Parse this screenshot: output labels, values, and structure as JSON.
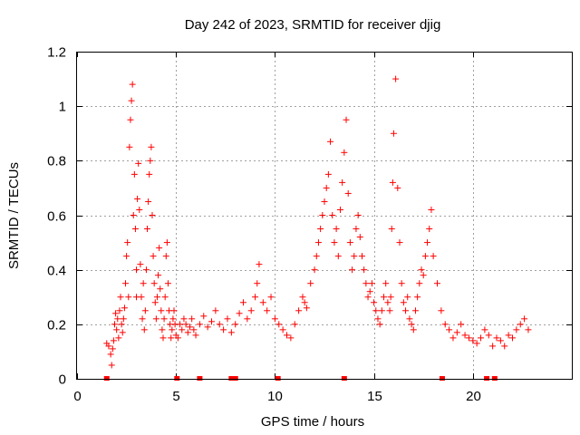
{
  "chart_data": {
    "type": "scatter",
    "title": "Day 242 of 2023, SRMTID for receiver djig",
    "xlabel": "GPS time / hours",
    "ylabel": "SRMTID / TECUs",
    "xlim": [
      0,
      25
    ],
    "ylim": [
      0,
      1.2
    ],
    "x_ticks": [
      0,
      5,
      10,
      15,
      20
    ],
    "x_tick_labels": [
      "0",
      "5",
      "10",
      "15",
      "20"
    ],
    "y_ticks": [
      0,
      0.2,
      0.4,
      0.6,
      0.8,
      1.0,
      1.2
    ],
    "y_tick_labels": [
      "0",
      "0.2",
      "0.4",
      "0.6",
      "0.8",
      "1",
      "1.2"
    ],
    "grid": true,
    "marker": "plus",
    "color": "#ff0000",
    "series": [
      {
        "name": "SRMTID",
        "x": [
          1.5,
          1.6,
          1.7,
          1.75,
          1.8,
          1.85,
          1.9,
          1.95,
          2.0,
          2.05,
          2.1,
          2.15,
          2.2,
          2.25,
          2.3,
          2.35,
          2.4,
          2.45,
          2.5,
          2.55,
          2.6,
          2.65,
          2.7,
          2.75,
          2.8,
          2.85,
          2.9,
          2.95,
          3.0,
          3.0,
          3.05,
          3.1,
          3.15,
          3.2,
          3.25,
          3.3,
          3.35,
          3.4,
          3.45,
          3.5,
          3.55,
          3.6,
          3.65,
          3.7,
          3.75,
          3.8,
          3.85,
          3.9,
          3.95,
          4.0,
          4.05,
          4.1,
          4.15,
          4.2,
          4.25,
          4.3,
          4.35,
          4.4,
          4.45,
          4.5,
          4.55,
          4.6,
          4.65,
          4.7,
          4.75,
          4.8,
          4.85,
          4.9,
          4.95,
          5.0,
          5.1,
          5.2,
          5.3,
          5.4,
          5.5,
          5.6,
          5.7,
          5.8,
          5.9,
          6.0,
          6.2,
          6.4,
          6.6,
          6.8,
          7.0,
          7.2,
          7.4,
          7.6,
          7.8,
          8.0,
          8.2,
          8.4,
          8.6,
          8.8,
          9.0,
          9.1,
          9.2,
          9.4,
          9.6,
          9.8,
          10.0,
          10.2,
          10.4,
          10.6,
          10.8,
          11.0,
          11.2,
          11.4,
          11.5,
          11.6,
          11.8,
          12.0,
          12.1,
          12.2,
          12.3,
          12.4,
          12.5,
          12.6,
          12.7,
          12.8,
          12.9,
          13.0,
          13.1,
          13.2,
          13.3,
          13.4,
          13.5,
          13.6,
          13.7,
          13.8,
          13.9,
          14.0,
          14.1,
          14.2,
          14.3,
          14.4,
          14.5,
          14.6,
          14.7,
          14.8,
          14.9,
          15.0,
          15.1,
          15.2,
          15.3,
          15.4,
          15.5,
          15.6,
          15.7,
          15.8,
          15.85,
          15.9,
          15.95,
          16.0,
          16.1,
          16.2,
          16.3,
          16.4,
          16.5,
          16.6,
          16.7,
          16.8,
          16.9,
          17.0,
          17.1,
          17.2,
          17.3,
          17.4,
          17.5,
          17.6,
          17.7,
          17.8,
          17.9,
          18.0,
          18.2,
          18.4,
          18.6,
          18.8,
          19.0,
          19.2,
          19.4,
          19.6,
          19.8,
          20.0,
          20.2,
          20.4,
          20.6,
          20.8,
          21.0,
          21.2,
          21.4,
          21.6,
          21.8,
          22.0,
          22.2,
          22.4,
          22.6,
          22.8
        ],
        "y": [
          0.13,
          0.12,
          0.09,
          0.05,
          0.11,
          0.14,
          0.2,
          0.24,
          0.18,
          0.22,
          0.15,
          0.25,
          0.3,
          0.2,
          0.17,
          0.22,
          0.26,
          0.35,
          0.45,
          0.5,
          0.3,
          0.85,
          0.95,
          1.02,
          1.08,
          0.6,
          0.75,
          0.55,
          0.4,
          0.3,
          0.66,
          0.79,
          0.62,
          0.42,
          0.3,
          0.22,
          0.35,
          0.18,
          0.25,
          0.4,
          0.55,
          0.65,
          0.75,
          0.8,
          0.85,
          0.6,
          0.45,
          0.35,
          0.28,
          0.22,
          0.3,
          0.38,
          0.48,
          0.33,
          0.25,
          0.18,
          0.15,
          0.22,
          0.3,
          0.45,
          0.5,
          0.35,
          0.25,
          0.2,
          0.15,
          0.18,
          0.22,
          0.25,
          0.2,
          0.16,
          0.15,
          0.2,
          0.18,
          0.22,
          0.2,
          0.17,
          0.19,
          0.22,
          0.18,
          0.16,
          0.2,
          0.23,
          0.19,
          0.21,
          0.25,
          0.2,
          0.18,
          0.22,
          0.17,
          0.2,
          0.24,
          0.28,
          0.22,
          0.25,
          0.3,
          0.35,
          0.42,
          0.28,
          0.25,
          0.3,
          0.22,
          0.2,
          0.18,
          0.16,
          0.15,
          0.2,
          0.25,
          0.3,
          0.28,
          0.26,
          0.35,
          0.4,
          0.45,
          0.5,
          0.55,
          0.6,
          0.65,
          0.7,
          0.75,
          0.87,
          0.6,
          0.5,
          0.55,
          0.45,
          0.62,
          0.72,
          0.83,
          0.95,
          0.68,
          0.5,
          0.4,
          0.45,
          0.55,
          0.6,
          0.52,
          0.45,
          0.4,
          0.35,
          0.3,
          0.32,
          0.35,
          0.28,
          0.25,
          0.22,
          0.2,
          0.25,
          0.3,
          0.35,
          0.28,
          0.25,
          0.3,
          0.55,
          0.72,
          0.9,
          1.1,
          0.7,
          0.5,
          0.35,
          0.28,
          0.25,
          0.3,
          0.22,
          0.2,
          0.18,
          0.25,
          0.3,
          0.35,
          0.4,
          0.38,
          0.45,
          0.5,
          0.55,
          0.62,
          0.45,
          0.35,
          0.25,
          0.2,
          0.18,
          0.15,
          0.17,
          0.2,
          0.16,
          0.15,
          0.14,
          0.13,
          0.15,
          0.18,
          0.16,
          0.12,
          0.15,
          0.14,
          0.12,
          0.16,
          0.15,
          0.18,
          0.2,
          0.22,
          0.18
        ]
      }
    ],
    "rug_x": [
      1.5,
      5.05,
      6.2,
      7.8,
      8.0,
      10.15,
      13.5,
      18.45,
      20.7,
      21.1
    ]
  }
}
